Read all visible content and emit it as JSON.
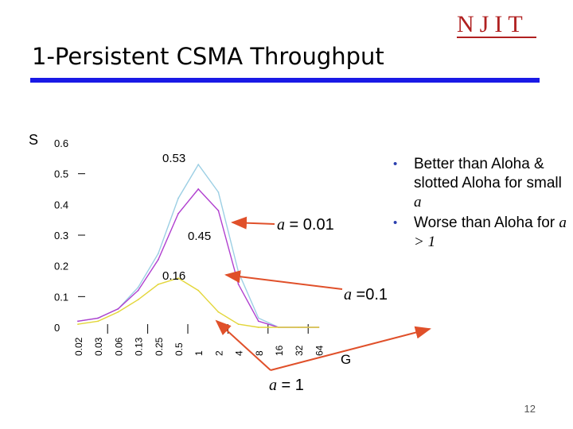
{
  "slide": {
    "title": "1-Persistent CSMA Throughput",
    "logo": "NJIT",
    "page_number": "12"
  },
  "bullets": [
    {
      "pre": "Better than Aloha & slotted Aloha for small ",
      "var": "a",
      "post": ""
    },
    {
      "pre": "Worse than Aloha for ",
      "var": "a",
      "post": " > 1"
    }
  ],
  "colors": {
    "title_rule": "#1a1ae6",
    "logo": "#b02020",
    "arrow": "#e0502a",
    "series_a001": "#9ccfe4",
    "series_a01": "#b03fcf",
    "series_a1": "#e3d63a"
  },
  "chart_data": {
    "type": "line",
    "ylabel": "S",
    "xlabel": "G",
    "ylim": [
      0,
      0.6
    ],
    "yticks": [
      "0",
      "0.1",
      "0.2",
      "0.3",
      "0.4",
      "0.5",
      "0.6"
    ],
    "x": [
      "0.02",
      "0.03",
      "0.06",
      "0.13",
      "0.25",
      "0.5",
      "1",
      "2",
      "4",
      "8",
      "16",
      "32",
      "64"
    ],
    "series": [
      {
        "name": "a = 0.01",
        "label_var": "a",
        "label_val": "0.01",
        "peak_label": "0.53",
        "values": [
          0.02,
          0.03,
          0.06,
          0.13,
          0.24,
          0.42,
          0.53,
          0.44,
          0.18,
          0.03,
          0.0,
          0.0,
          0.0
        ]
      },
      {
        "name": "a =0.1",
        "label_var": "a",
        "label_val": "0.1",
        "peak_label": "0.45",
        "values": [
          0.02,
          0.03,
          0.06,
          0.12,
          0.22,
          0.37,
          0.45,
          0.38,
          0.14,
          0.02,
          0.0,
          0.0,
          0.0
        ]
      },
      {
        "name": "a = 1",
        "label_var": "a",
        "label_val": "1",
        "peak_label": "0.16",
        "values": [
          0.01,
          0.02,
          0.05,
          0.09,
          0.14,
          0.16,
          0.12,
          0.05,
          0.01,
          0.0,
          0.0,
          0.0,
          0.0
        ]
      }
    ]
  }
}
